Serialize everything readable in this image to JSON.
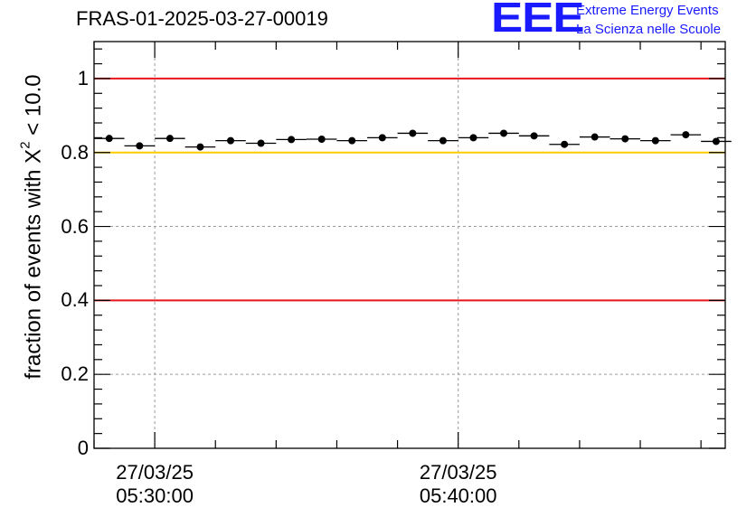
{
  "run_title": "FRAS-01-2025-03-27-00019",
  "logo": {
    "mark": "EEE",
    "line1": "Extreme Energy Events",
    "line2": "La Scienza nelle Scuole",
    "color": "#1a1aff"
  },
  "chart_data": {
    "type": "scatter",
    "title": "FRAS-01-2025-03-27-00019",
    "xlabel": "",
    "ylabel_prefix": "fraction of events with ",
    "ylabel_symbol": "X",
    "ylabel_sup": "2",
    "ylabel_suffix": " < 10.0",
    "ylim": [
      0,
      1.1
    ],
    "xlim_minutes": [
      -2.0,
      18.8
    ],
    "x_ticks": [
      {
        "minute": 0,
        "date": "27/03/25",
        "time": "05:30:00"
      },
      {
        "minute": 10,
        "date": "27/03/25",
        "time": "05:40:00"
      }
    ],
    "y_ticks": [
      {
        "value": 0,
        "label": "0"
      },
      {
        "value": 0.2,
        "label": "0.2"
      },
      {
        "value": 0.4,
        "label": "0.4"
      },
      {
        "value": 0.6,
        "label": "0.6"
      },
      {
        "value": 0.8,
        "label": "0.8"
      },
      {
        "value": 1,
        "label": "1"
      }
    ],
    "reference_lines": [
      {
        "y": 1.0,
        "color": "#e8141a"
      },
      {
        "y": 0.8,
        "color": "#ffcc00"
      },
      {
        "y": 0.4,
        "color": "#e8141a"
      }
    ],
    "grid": true,
    "bin_width_minutes": 1,
    "x": [
      -1.5,
      -0.5,
      0.5,
      1.5,
      2.5,
      3.5,
      4.5,
      5.5,
      6.5,
      7.5,
      8.5,
      9.5,
      10.5,
      11.5,
      12.5,
      13.5,
      14.5,
      15.5,
      16.5,
      17.5,
      18.5
    ],
    "values": [
      0.838,
      0.818,
      0.838,
      0.815,
      0.832,
      0.825,
      0.835,
      0.836,
      0.832,
      0.84,
      0.852,
      0.832,
      0.84,
      0.852,
      0.845,
      0.822,
      0.842,
      0.837,
      0.832,
      0.848,
      0.83
    ]
  }
}
